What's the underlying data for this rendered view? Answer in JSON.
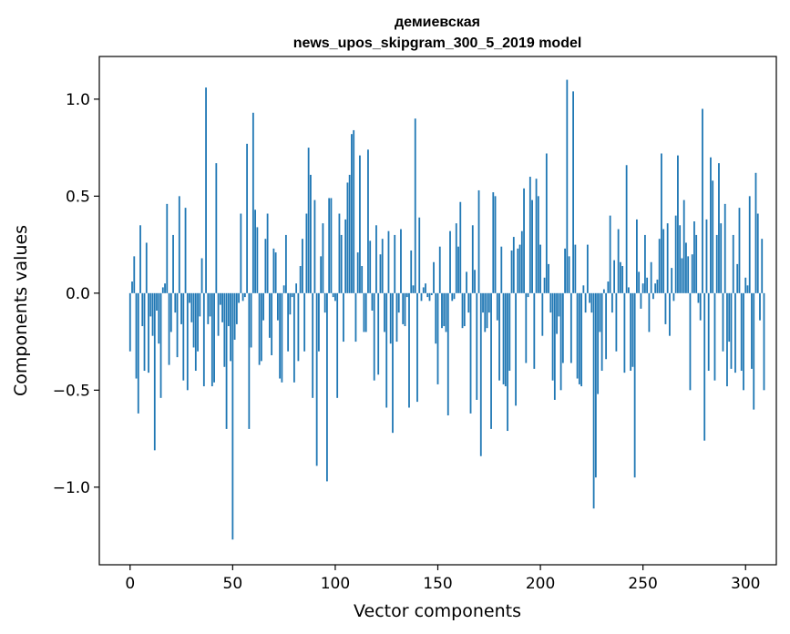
{
  "chart_data": {
    "type": "bar",
    "title_lines": [
      "демиевская",
      "news_upos_skipgram_300_5_2019 model"
    ],
    "xlabel": "Vector components",
    "ylabel": "Components values",
    "xlim": [
      -15,
      315
    ],
    "ylim": [
      -1.4,
      1.22
    ],
    "x_ticks": [
      0,
      50,
      100,
      150,
      200,
      250,
      300
    ],
    "y_ticks": [
      1.0,
      0.5,
      0.0,
      -0.5,
      -1.0
    ],
    "x_tick_labels": [
      "0",
      "50",
      "100",
      "150",
      "200",
      "250",
      "300"
    ],
    "y_tick_labels": [
      "1.0",
      "0.5",
      "0.0",
      "−0.5",
      "−1.0"
    ],
    "grid": false,
    "bar_color": "#1f77b4",
    "values": [
      -0.3,
      0.06,
      0.19,
      -0.44,
      -0.62,
      0.35,
      -0.17,
      -0.4,
      0.26,
      -0.41,
      -0.12,
      -0.22,
      -0.81,
      -0.09,
      -0.26,
      -0.54,
      0.03,
      0.05,
      0.46,
      -0.37,
      -0.2,
      0.3,
      -0.1,
      -0.33,
      0.5,
      -0.16,
      -0.45,
      0.44,
      -0.5,
      -0.05,
      -0.15,
      -0.28,
      -0.4,
      -0.3,
      -0.12,
      0.18,
      -0.48,
      1.06,
      -0.16,
      -0.12,
      -0.48,
      -0.46,
      0.67,
      -0.22,
      -0.06,
      -0.15,
      -0.38,
      -0.7,
      -0.17,
      -0.35,
      -1.27,
      -0.24,
      -0.16,
      -0.05,
      0.41,
      -0.04,
      -0.02,
      0.77,
      -0.7,
      -0.28,
      0.93,
      0.43,
      0.34,
      -0.37,
      -0.35,
      -0.14,
      0.28,
      0.41,
      -0.23,
      -0.32,
      0.23,
      0.21,
      -0.14,
      -0.44,
      -0.46,
      0.04,
      0.3,
      -0.3,
      -0.11,
      -0.02,
      -0.46,
      0.05,
      -0.35,
      0.14,
      0.28,
      -0.3,
      0.41,
      0.75,
      0.61,
      -0.54,
      0.48,
      -0.89,
      -0.3,
      0.19,
      0.36,
      -0.1,
      -0.97,
      0.49,
      0.49,
      -0.02,
      -0.04,
      -0.54,
      0.41,
      0.3,
      -0.25,
      0.38,
      0.57,
      0.61,
      0.82,
      0.84,
      -0.25,
      0.21,
      0.71,
      0.14,
      -0.2,
      -0.2,
      0.74,
      0.27,
      -0.09,
      -0.45,
      0.35,
      -0.42,
      0.2,
      0.28,
      -0.2,
      -0.59,
      0.32,
      -0.26,
      -0.72,
      0.3,
      -0.25,
      -0.1,
      0.33,
      -0.16,
      -0.17,
      -0.02,
      -0.59,
      0.22,
      0.04,
      0.9,
      -0.56,
      0.39,
      -0.04,
      0.03,
      0.05,
      -0.02,
      -0.04,
      -0.01,
      0.16,
      -0.26,
      -0.47,
      0.24,
      -0.18,
      -0.17,
      -0.2,
      -0.63,
      0.32,
      -0.04,
      -0.03,
      0.36,
      0.24,
      0.47,
      -0.18,
      -0.17,
      0.11,
      -0.1,
      -0.62,
      0.35,
      0.12,
      -0.55,
      0.53,
      -0.84,
      -0.1,
      -0.2,
      -0.18,
      -0.1,
      -0.7,
      0.52,
      0.5,
      -0.14,
      -0.45,
      0.24,
      -0.47,
      -0.48,
      -0.71,
      -0.4,
      0.22,
      0.29,
      -0.58,
      0.23,
      0.25,
      0.32,
      0.54,
      -0.36,
      -0.02,
      0.6,
      0.48,
      -0.39,
      0.59,
      0.5,
      0.25,
      -0.22,
      0.08,
      0.72,
      0.15,
      -0.1,
      -0.45,
      -0.55,
      -0.21,
      -0.12,
      -0.5,
      -0.36,
      0.23,
      1.1,
      0.19,
      -0.36,
      1.04,
      0.25,
      -0.44,
      -0.47,
      -0.48,
      0.04,
      -0.1,
      0.25,
      -0.05,
      -0.1,
      -1.11,
      -0.95,
      -0.52,
      -0.2,
      -0.4,
      0.02,
      -0.34,
      0.06,
      0.4,
      -0.1,
      0.17,
      -0.3,
      0.33,
      0.16,
      0.14,
      -0.41,
      0.66,
      0.03,
      -0.4,
      -0.38,
      -0.95,
      0.38,
      0.11,
      -0.08,
      0.05,
      0.3,
      0.08,
      -0.2,
      0.16,
      -0.03,
      0.05,
      0.07,
      0.28,
      0.72,
      0.33,
      -0.16,
      0.36,
      -0.22,
      0.13,
      -0.04,
      0.4,
      0.71,
      0.35,
      0.18,
      0.48,
      0.26,
      0.19,
      -0.5,
      0.2,
      0.37,
      0.3,
      -0.05,
      -0.14,
      0.95,
      -0.76,
      0.38,
      -0.4,
      0.7,
      0.58,
      -0.45,
      0.3,
      0.67,
      0.36,
      -0.3,
      0.46,
      -0.48,
      -0.25,
      -0.39,
      0.3,
      -0.41,
      0.15,
      0.44,
      -0.4,
      -0.5,
      0.08,
      0.04,
      0.5,
      -0.39,
      -0.6,
      0.62,
      0.41,
      -0.14,
      0.28,
      -0.5
    ]
  }
}
